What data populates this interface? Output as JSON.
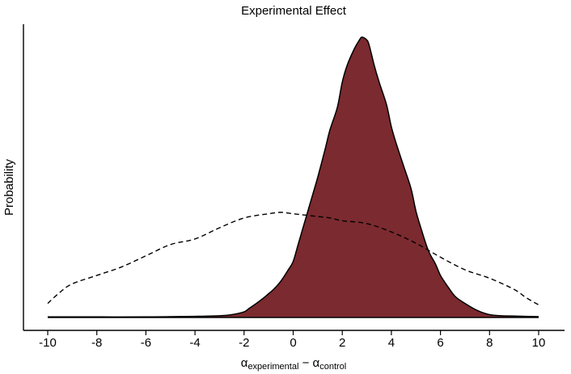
{
  "chart_data": {
    "type": "area",
    "title": "Experimental Effect",
    "ylabel": "Probability",
    "xlabel": {
      "main_left": "α",
      "sub_left": "experimental",
      "operator": " − ",
      "main_right": "α",
      "sub_right": "control"
    },
    "xlim": [
      -10,
      10
    ],
    "ylim": [
      0,
      1.08
    ],
    "xticks": [
      -10,
      -8,
      -6,
      -4,
      -2,
      0,
      2,
      4,
      6,
      8,
      10
    ],
    "xtick_labels": [
      "-10",
      "-8",
      "-6",
      "-4",
      "-2",
      "0",
      "2",
      "4",
      "6",
      "8",
      "10"
    ],
    "y_axis_ticks": false,
    "grid": false,
    "fill_color": "#7b2a2f",
    "series": [
      {
        "style": "filled-solid",
        "x": [
          -10,
          -8,
          -6,
          -5,
          -4,
          -3,
          -2.5,
          -2,
          -1.8,
          -1.5,
          -1.2,
          -1,
          -0.8,
          -0.5,
          -0.2,
          0,
          0.2,
          0.5,
          0.8,
          1,
          1.3,
          1.5,
          1.8,
          2,
          2.2,
          2.5,
          2.7,
          2.8,
          3,
          3.1,
          3.3,
          3.5,
          3.8,
          4,
          4.2,
          4.5,
          4.8,
          5,
          5.2,
          5.5,
          5.8,
          6,
          6.3,
          6.6,
          7,
          7.5,
          8,
          8.5,
          9,
          10
        ],
        "y": [
          0.002,
          0.002,
          0.002,
          0.003,
          0.004,
          0.006,
          0.01,
          0.02,
          0.032,
          0.05,
          0.07,
          0.085,
          0.1,
          0.13,
          0.17,
          0.2,
          0.26,
          0.35,
          0.44,
          0.5,
          0.6,
          0.67,
          0.75,
          0.84,
          0.9,
          0.96,
          0.99,
          1.0,
          0.99,
          0.97,
          0.9,
          0.84,
          0.76,
          0.68,
          0.62,
          0.54,
          0.46,
          0.38,
          0.32,
          0.24,
          0.19,
          0.15,
          0.11,
          0.075,
          0.05,
          0.025,
          0.01,
          0.006,
          0.005,
          0.003
        ]
      },
      {
        "style": "dashed",
        "x": [
          -10,
          -9.5,
          -9,
          -8,
          -7,
          -6,
          -5,
          -4,
          -3,
          -2,
          -1,
          -0.5,
          0,
          0.5,
          1,
          1.5,
          2,
          3,
          4,
          5,
          6,
          7,
          8,
          9,
          9.5,
          10
        ],
        "y": [
          0.05,
          0.09,
          0.12,
          0.15,
          0.18,
          0.22,
          0.26,
          0.28,
          0.32,
          0.355,
          0.37,
          0.375,
          0.37,
          0.365,
          0.36,
          0.355,
          0.345,
          0.335,
          0.305,
          0.265,
          0.215,
          0.17,
          0.14,
          0.1,
          0.07,
          0.045
        ]
      }
    ]
  }
}
